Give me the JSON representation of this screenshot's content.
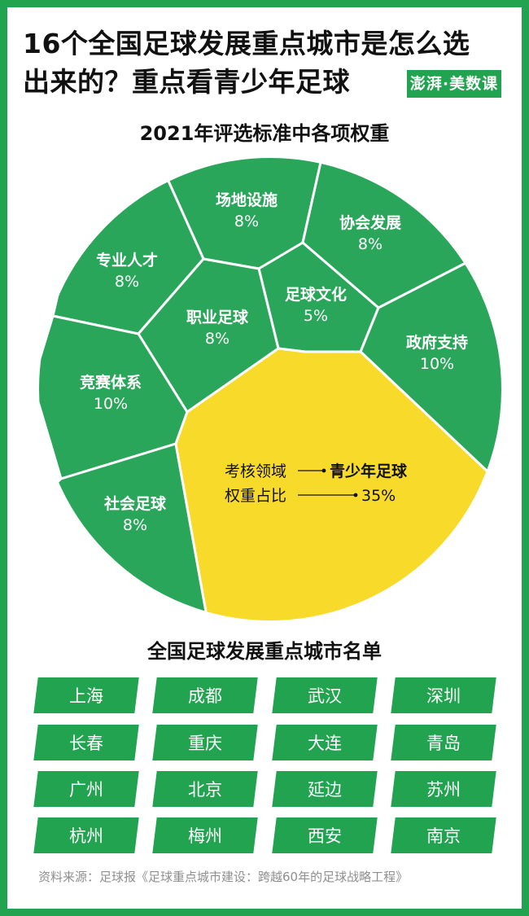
{
  "headline": {
    "line1": "16个全国足球发展重点城市是怎么选",
    "line2": "出来的？重点看青少年足球"
  },
  "logo": "澎湃·美数课",
  "chart_data": {
    "type": "voronoi-treemap",
    "title": "2021年评选标准中各项权重",
    "unit": "%",
    "cells": [
      {
        "label": "场地设施",
        "value": 8,
        "display": "8%"
      },
      {
        "label": "协会发展",
        "value": 8,
        "display": "8%"
      },
      {
        "label": "专业人才",
        "value": 8,
        "display": "8%"
      },
      {
        "label": "足球文化",
        "value": 5,
        "display": "5%"
      },
      {
        "label": "职业足球",
        "value": 8,
        "display": "8%"
      },
      {
        "label": "政府支持",
        "value": 10,
        "display": "10%"
      },
      {
        "label": "竞赛体系",
        "value": 10,
        "display": "10%"
      },
      {
        "label": "社会足球",
        "value": 8,
        "display": "8%"
      },
      {
        "label": "青少年足球",
        "value": 35,
        "display": "35%",
        "highlight": true
      }
    ],
    "annotation": {
      "field_label": "考核领域",
      "field_value": "青少年足球",
      "weight_label": "权重占比",
      "weight_value": "35%"
    },
    "colors": {
      "cell": "#2aa65a",
      "highlight": "#f8da2a",
      "border": "#ffffff"
    }
  },
  "city_list": {
    "title": "全国足球发展重点城市名单",
    "cities": [
      "上海",
      "成都",
      "武汉",
      "深圳",
      "长春",
      "重庆",
      "大连",
      "青岛",
      "广州",
      "北京",
      "延边",
      "苏州",
      "杭州",
      "梅州",
      "西安",
      "南京"
    ]
  },
  "source": "资料来源：足球报《足球重点城市建设：跨越60年的足球战略工程》",
  "colors": {
    "brand_green": "#21a34f",
    "highlight_yellow": "#f8da2a"
  }
}
